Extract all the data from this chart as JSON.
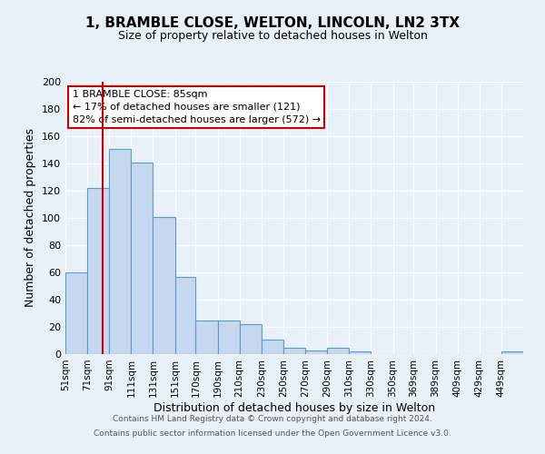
{
  "title": "1, BRAMBLE CLOSE, WELTON, LINCOLN, LN2 3TX",
  "subtitle": "Size of property relative to detached houses in Welton",
  "xlabel": "Distribution of detached houses by size in Welton",
  "ylabel": "Number of detached properties",
  "bin_labels": [
    "51sqm",
    "71sqm",
    "91sqm",
    "111sqm",
    "131sqm",
    "151sqm",
    "170sqm",
    "190sqm",
    "210sqm",
    "230sqm",
    "250sqm",
    "270sqm",
    "290sqm",
    "310sqm",
    "330sqm",
    "350sqm",
    "369sqm",
    "389sqm",
    "409sqm",
    "429sqm",
    "449sqm"
  ],
  "bin_edges": [
    51,
    71,
    91,
    111,
    131,
    151,
    170,
    190,
    210,
    230,
    250,
    270,
    290,
    310,
    330,
    350,
    369,
    389,
    409,
    429,
    449,
    469
  ],
  "bar_heights": [
    60,
    122,
    151,
    141,
    101,
    57,
    25,
    25,
    22,
    11,
    5,
    3,
    5,
    2,
    0,
    0,
    0,
    0,
    0,
    0,
    2
  ],
  "bar_color": "#c5d8ed",
  "bar_edge_color": "#5b9bd5",
  "vline_x": 85,
  "vline_color": "#cc0000",
  "annotation_line1": "1 BRAMBLE CLOSE: 85sqm",
  "annotation_line2": "← 17% of detached houses are smaller (121)",
  "annotation_line3": "82% of semi-detached houses are larger (572) →",
  "ylim": [
    0,
    200
  ],
  "yticks": [
    0,
    20,
    40,
    60,
    80,
    100,
    120,
    140,
    160,
    180,
    200
  ],
  "background_color": "#e8f0f8",
  "grid_color": "#ffffff",
  "footer_line1": "Contains HM Land Registry data © Crown copyright and database right 2024.",
  "footer_line2": "Contains public sector information licensed under the Open Government Licence v3.0."
}
